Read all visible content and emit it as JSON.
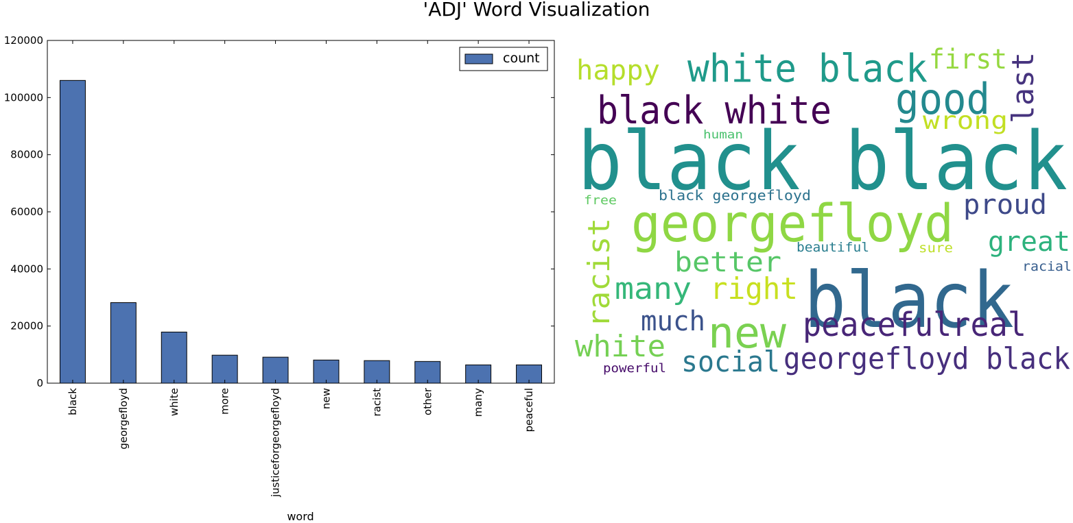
{
  "figure": {
    "title": "'ADJ' Word Visualization"
  },
  "chart_data": {
    "type": "bar",
    "title": "",
    "xlabel": "word",
    "ylabel": "",
    "ylim": [
      0,
      120000
    ],
    "yticks": [
      "0",
      "20000",
      "40000",
      "60000",
      "80000",
      "100000",
      "120000"
    ],
    "ytick_values": [
      0,
      20000,
      40000,
      60000,
      80000,
      100000,
      120000
    ],
    "categories": [
      "black",
      "georgefloyd",
      "white",
      "more",
      "justiceforgeorgefloyd",
      "new",
      "racist",
      "other",
      "many",
      "peaceful"
    ],
    "series": [
      {
        "name": "count",
        "color": "#4c72b0",
        "values": [
          106000,
          28200,
          17900,
          9800,
          9100,
          8100,
          7900,
          7600,
          6400,
          6400
        ]
      }
    ],
    "legend": {
      "position": "top-right",
      "label": "count"
    },
    "grid": false
  },
  "wordcloud": {
    "words": [
      {
        "text": "black black",
        "color": "#21908d"
      },
      {
        "text": "georgefloyd",
        "color": "#8fd744"
      },
      {
        "text": "black",
        "color": "#31688e"
      },
      {
        "text": "white black",
        "color": "#1f9a8a"
      },
      {
        "text": "black white",
        "color": "#440154"
      },
      {
        "text": "good",
        "color": "#23898e"
      },
      {
        "text": "new",
        "color": "#7ad151"
      },
      {
        "text": "peacefulreal",
        "color": "#482677"
      },
      {
        "text": "georgefloyd black",
        "color": "#472f7d"
      },
      {
        "text": "racist",
        "color": "#a0da39"
      },
      {
        "text": "right",
        "color": "#c8e020"
      },
      {
        "text": "many",
        "color": "#35b779"
      },
      {
        "text": "better",
        "color": "#56c667"
      },
      {
        "text": "white",
        "color": "#75d054"
      },
      {
        "text": "social",
        "color": "#2a788e"
      },
      {
        "text": "much",
        "color": "#3b528b"
      },
      {
        "text": "proud",
        "color": "#3e4989"
      },
      {
        "text": "great",
        "color": "#2db27d"
      },
      {
        "text": "happy",
        "color": "#b5de2b"
      },
      {
        "text": "first",
        "color": "#95d840"
      },
      {
        "text": "last",
        "color": "#46337e"
      },
      {
        "text": "wrong",
        "color": "#c2df23"
      },
      {
        "text": "black georgefloyd",
        "color": "#2c728e"
      },
      {
        "text": "beautiful",
        "color": "#287d8e"
      },
      {
        "text": "sure",
        "color": "#bddf26"
      },
      {
        "text": "racial",
        "color": "#365d8d"
      },
      {
        "text": "powerful",
        "color": "#450a69"
      },
      {
        "text": "human",
        "color": "#4ac16d"
      },
      {
        "text": "free",
        "color": "#5ec962"
      }
    ]
  }
}
